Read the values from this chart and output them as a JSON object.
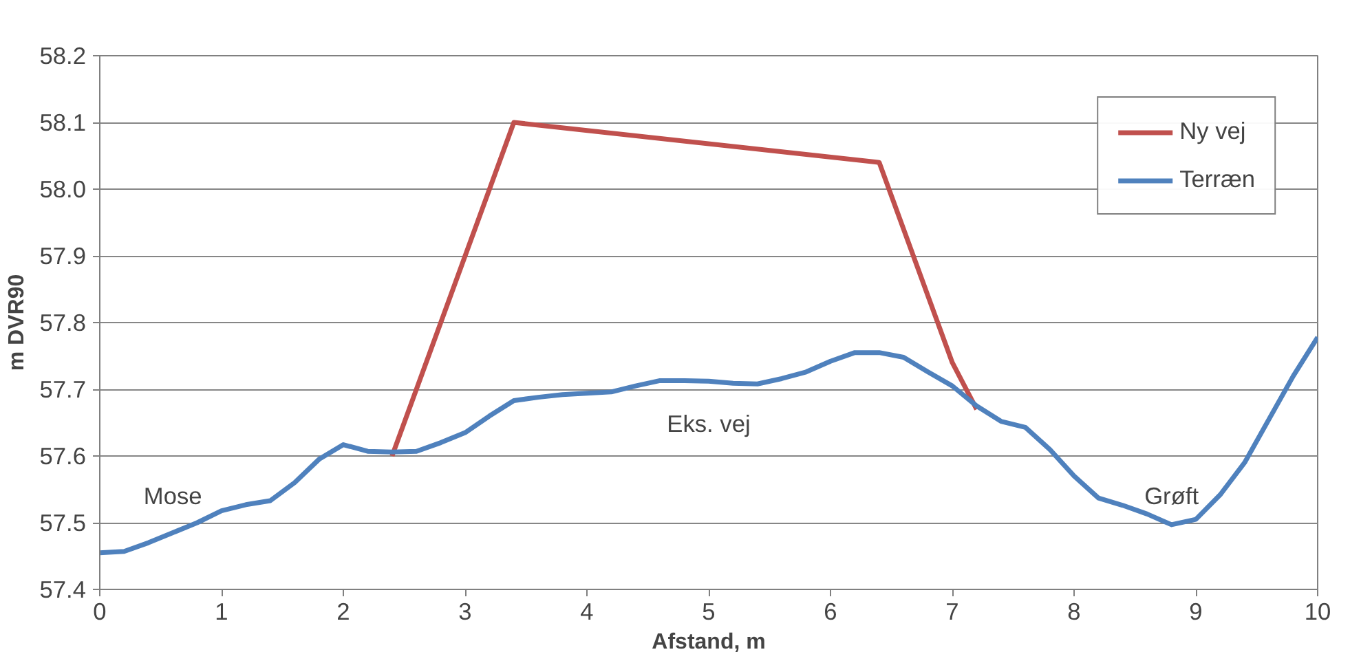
{
  "chart_data": {
    "type": "line",
    "xlabel": "Afstand, m",
    "ylabel": "m DVR90",
    "xlim": [
      0,
      10
    ],
    "xticks": [
      0,
      1,
      2,
      3,
      4,
      5,
      6,
      7,
      8,
      9,
      10
    ],
    "ylim": [
      57.4,
      58.2
    ],
    "yticks": [
      {
        "value": 57.4,
        "label": "57.4"
      },
      {
        "value": 57.5,
        "label": "57.5"
      },
      {
        "value": 57.6,
        "label": "57.6"
      },
      {
        "value": 57.7,
        "label": "57.7"
      },
      {
        "value": 57.8,
        "label": "57.8"
      },
      {
        "value": 57.9,
        "label": "57.9"
      },
      {
        "value": 58.0,
        "label": "58.0"
      },
      {
        "value": 58.1,
        "label": "58.1"
      },
      {
        "value": 58.2,
        "label": "58.2"
      }
    ],
    "grid": "y",
    "legend": "top right",
    "marker": "none",
    "line_style": "solid",
    "series": [
      {
        "name": "Ny vej",
        "color": "#c0504d",
        "x": [
          2.4,
          3.4,
          6.4,
          7.0,
          7.2
        ],
        "values": [
          57.6,
          58.1,
          58.04,
          57.74,
          57.67
        ]
      },
      {
        "name": "Terræn",
        "color": "#4f81bd",
        "x": [
          0,
          0.2,
          0.4,
          0.6,
          0.8,
          1.0,
          1.2,
          1.4,
          1.6,
          1.8,
          2.0,
          2.2,
          2.4,
          2.6,
          2.8,
          3.0,
          3.2,
          3.4,
          3.6,
          3.8,
          4.0,
          4.2,
          4.4,
          4.6,
          4.8,
          5.0,
          5.2,
          5.4,
          5.6,
          5.8,
          6.0,
          6.2,
          6.4,
          6.6,
          6.8,
          7.0,
          7.2,
          7.4,
          7.6,
          7.8,
          8.0,
          8.2,
          8.4,
          8.6,
          8.8,
          9.0,
          9.2,
          9.4,
          9.6,
          9.8,
          10.0
        ],
        "values": [
          57.455,
          57.457,
          57.47,
          57.485,
          57.5,
          57.518,
          57.527,
          57.533,
          57.56,
          57.595,
          57.617,
          57.607,
          57.606,
          57.607,
          57.62,
          57.635,
          57.66,
          57.683,
          57.688,
          57.692,
          57.694,
          57.696,
          57.705,
          57.713,
          57.713,
          57.712,
          57.709,
          57.708,
          57.716,
          57.726,
          57.742,
          57.755,
          57.755,
          57.748,
          57.726,
          57.705,
          57.675,
          57.652,
          57.643,
          57.61,
          57.57,
          57.537,
          57.526,
          57.513,
          57.497,
          57.505,
          57.542,
          57.59,
          57.655,
          57.72,
          57.778
        ]
      }
    ],
    "annotations": [
      "Mose",
      "Eks. vej",
      "Grøft"
    ]
  }
}
